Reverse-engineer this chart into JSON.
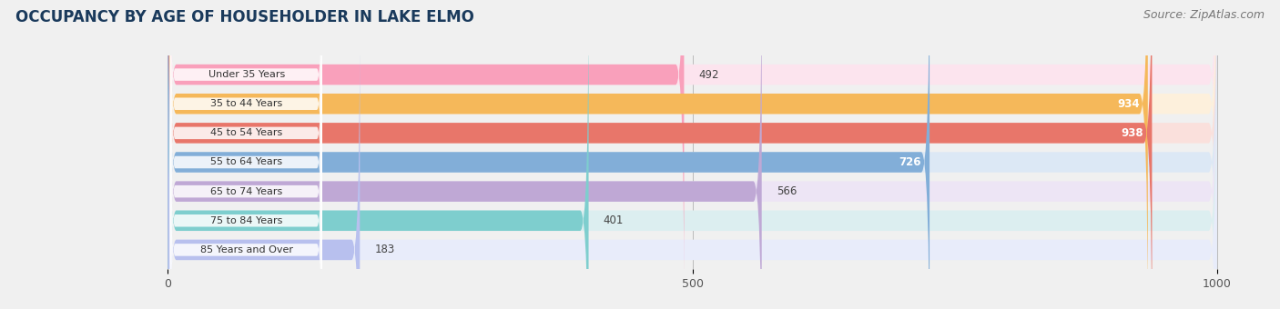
{
  "title": "OCCUPANCY BY AGE OF HOUSEHOLDER IN LAKE ELMO",
  "source": "Source: ZipAtlas.com",
  "categories": [
    "Under 35 Years",
    "35 to 44 Years",
    "45 to 54 Years",
    "55 to 64 Years",
    "65 to 74 Years",
    "75 to 84 Years",
    "85 Years and Over"
  ],
  "values": [
    492,
    934,
    938,
    726,
    566,
    401,
    183
  ],
  "bar_colors": [
    "#F9A0BB",
    "#F5B85A",
    "#E8766A",
    "#82AED8",
    "#BFA8D5",
    "#7ECECE",
    "#B8C0EE"
  ],
  "bar_bg_colors": [
    "#FCE4EE",
    "#FDF0DC",
    "#FAE0DC",
    "#DCE8F5",
    "#EDE5F5",
    "#DCEEF0",
    "#E8ECFA"
  ],
  "value_inside": [
    false,
    true,
    true,
    true,
    false,
    false,
    false
  ],
  "xlim_left": -160,
  "xlim_right": 1060,
  "x_max_bar": 1000,
  "xticks": [
    0,
    500,
    1000
  ],
  "title_fontsize": 12,
  "title_color": "#1a3a5c",
  "source_fontsize": 9,
  "bar_height": 0.7,
  "bar_gap": 1.0,
  "background_color": "#f0f0f0",
  "label_bg_color": "#ffffff",
  "rounding_size": 8
}
